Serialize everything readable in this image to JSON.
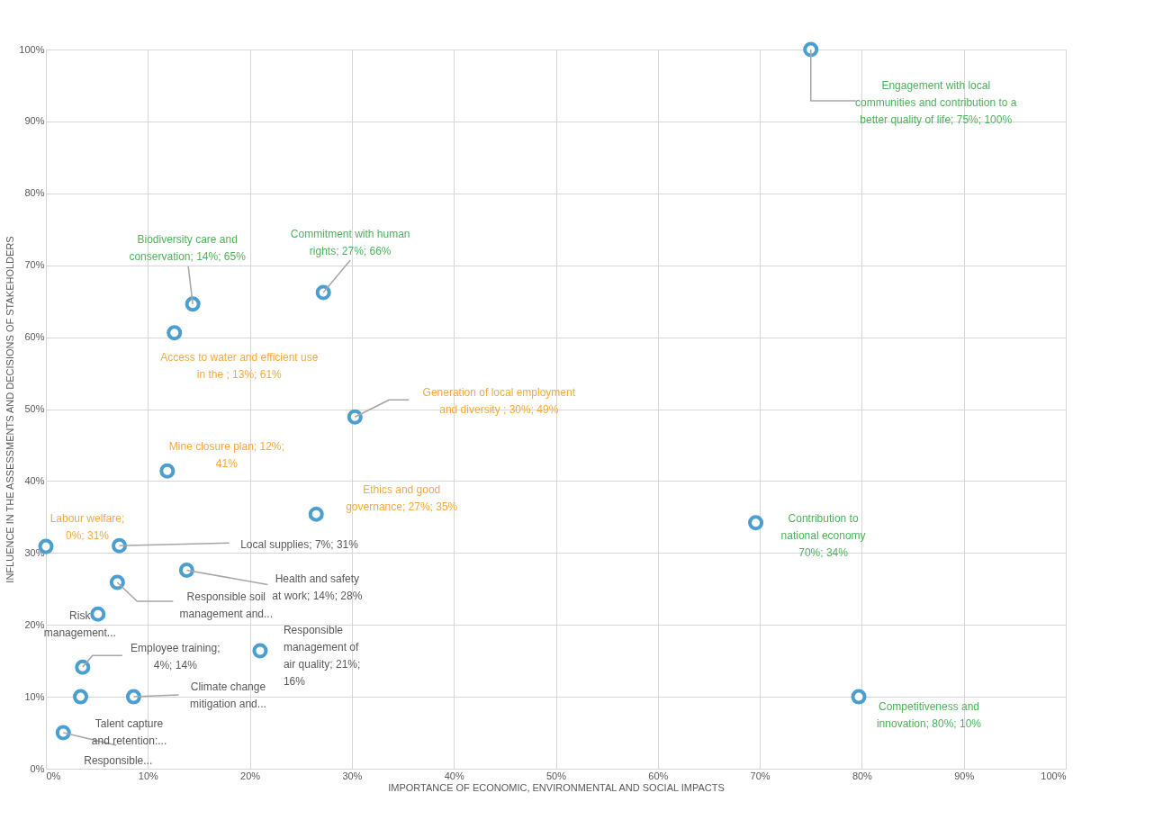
{
  "chart_data": {
    "type": "scatter",
    "xlabel": "IMPORTANCE OF ECONOMIC, ENVIRONMENTAL AND SOCIAL IMPACTS",
    "ylabel": "INFLUENCE IN THE ASSESSMENTS AND DECISIONS OF STAKEHOLDERS",
    "x": [
      75,
      14.4,
      27.2,
      12.6,
      30.3,
      11.9,
      26.5,
      69.6,
      0,
      7.2,
      13.8,
      7.0,
      5.1,
      3.6,
      21.0,
      3.4,
      8.6,
      1.7,
      79.7
    ],
    "series": [
      {
        "color": "#4a9fd0",
        "values": [
          100,
          64.6,
          66.2,
          60.6,
          48.9,
          41.4,
          35.4,
          34.2,
          30.9,
          31.0,
          27.6,
          25.9,
          21.5,
          14.1,
          16.4,
          10.0,
          10.0,
          5.0,
          10.0
        ]
      }
    ],
    "xlim": [
      0,
      100
    ],
    "ylim": [
      0,
      100
    ],
    "xticks": [
      {
        "value": 0,
        "label": "0%"
      },
      {
        "value": 10,
        "label": "10%"
      },
      {
        "value": 20,
        "label": "20%"
      },
      {
        "value": 30,
        "label": "30%"
      },
      {
        "value": 40,
        "label": "40%"
      },
      {
        "value": 50,
        "label": "50%"
      },
      {
        "value": 60,
        "label": "60%"
      },
      {
        "value": 70,
        "label": "70%"
      },
      {
        "value": 80,
        "label": "80%"
      },
      {
        "value": 90,
        "label": "90%"
      },
      {
        "value": 100,
        "label": "100%"
      }
    ],
    "yticks": [
      {
        "value": 0,
        "label": "0%"
      },
      {
        "value": 10,
        "label": "10%"
      },
      {
        "value": 20,
        "label": "20%"
      },
      {
        "value": 30,
        "label": "30%"
      },
      {
        "value": 40,
        "label": "40%"
      },
      {
        "value": 50,
        "label": "50%"
      },
      {
        "value": 60,
        "label": "60%"
      },
      {
        "value": 70,
        "label": "70%"
      },
      {
        "value": 80,
        "label": "80%"
      },
      {
        "value": 90,
        "label": "90%"
      },
      {
        "value": 100,
        "label": "100%"
      }
    ],
    "grid": true,
    "marker": "circle",
    "annotations": [
      {
        "text": "Engagement with local\ncommunities and contribution to a\nbetter quality of life; 75%; 100%",
        "x": 75,
        "y": 100
      },
      {
        "text": "Biodiversity care and\nconservation; 14%; 65%",
        "x": 14.4,
        "y": 64.6
      },
      {
        "text": "Commitment with human\nrights; 27%; 66%",
        "x": 27.2,
        "y": 66.2
      },
      {
        "text": "Access to water and efficient use\nin the ; 13%; 61%",
        "x": 12.6,
        "y": 60.6
      },
      {
        "text": "Generation of local employment\nand diversity ; 30%; 49%",
        "x": 30.3,
        "y": 48.9
      },
      {
        "text": "Mine closure plan; 12%;\n41%",
        "x": 11.9,
        "y": 41.4
      },
      {
        "text": "Ethics and good\ngovernance; 27%; 35%",
        "x": 26.5,
        "y": 35.4
      },
      {
        "text": "Contribution to\nnational economy\n70%; 34%",
        "x": 69.6,
        "y": 34.2
      },
      {
        "text": "Labour welfare;\n0%; 31%",
        "x": 0,
        "y": 30.9
      },
      {
        "text": "Local supplies; 7%; 31%",
        "x": 7.2,
        "y": 31.0
      },
      {
        "text": "Health and safety\nat work; 14%; 28%",
        "x": 13.8,
        "y": 27.6
      },
      {
        "text": "Responsible soil\nmanagement and...",
        "x": 7.0,
        "y": 25.9
      },
      {
        "text": "Risk\nmanagement...",
        "x": 5.1,
        "y": 21.5
      },
      {
        "text": "Employee training;\n4%; 14%",
        "x": 3.6,
        "y": 14.1
      },
      {
        "text": "Responsible\nmanagement of\nair quality; 21%;\n16%",
        "x": 21.0,
        "y": 16.4
      },
      {
        "text": "Talent capture\nand retention:...",
        "x": 3.4,
        "y": 10.0
      },
      {
        "text": "Climate change\nmitigation and...",
        "x": 8.6,
        "y": 10.0
      },
      {
        "text": "Responsible...",
        "x": 1.7,
        "y": 5.0
      },
      {
        "text": "Competitiveness and\ninnovation; 80%; 10%",
        "x": 79.7,
        "y": 10.0
      }
    ]
  }
}
